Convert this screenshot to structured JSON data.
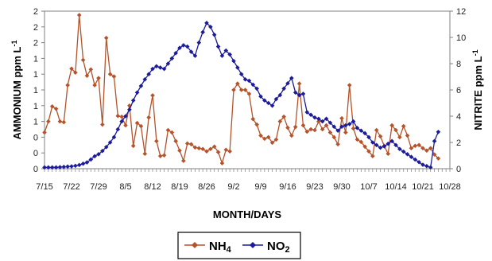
{
  "chart_data": {
    "type": "line",
    "xlabel": "MONTH/DAYS",
    "ylabel_left": "AMMONIUM ppm L",
    "ylabel_left_sup": "-1",
    "ylabel_right": "NITRITE ppm L",
    "ylabel_right_sup": "-1",
    "x_ticks": [
      "7/15",
      "7/22",
      "7/29",
      "8/5",
      "8/12",
      "8/19",
      "8/26",
      "9/2",
      "9/9",
      "9/16",
      "9/23",
      "9/30",
      "10/7",
      "10/14",
      "10/21",
      "10/28"
    ],
    "x_unit": "days since 7/15",
    "xlim": [
      0,
      105
    ],
    "y_left_ticks": [
      "0",
      "0",
      "0",
      "1",
      "1",
      "1",
      "1",
      "1",
      "2",
      "2",
      "2"
    ],
    "y_left_lim": [
      0,
      2
    ],
    "y_right_ticks": [
      "0",
      "2",
      "4",
      "6",
      "8",
      "10",
      "12"
    ],
    "y_right_lim": [
      0,
      12
    ],
    "grid": false,
    "legend_position": "bottom-center",
    "series": [
      {
        "name": "NH",
        "name_sub": "4",
        "axis": "left",
        "color": "#b5532a",
        "marker": "diamond",
        "x": [
          0,
          1,
          2,
          3,
          4,
          5,
          6,
          7,
          8,
          9,
          10,
          11,
          12,
          13,
          14,
          15,
          16,
          17,
          18,
          19,
          20,
          21,
          22,
          23,
          24,
          25,
          26,
          27,
          28,
          29,
          30,
          31,
          32,
          33,
          34,
          35,
          36,
          37,
          38,
          39,
          40,
          41,
          42,
          43,
          44,
          45,
          46,
          47,
          48,
          49,
          50,
          51,
          52,
          53,
          54,
          55,
          56,
          57,
          58,
          59,
          60,
          61,
          62,
          63,
          64,
          65,
          66,
          67,
          68,
          69,
          70,
          71,
          72,
          73,
          74,
          75,
          76,
          77,
          78,
          79,
          80,
          81,
          82,
          83,
          84,
          85,
          86,
          87,
          88,
          89,
          90,
          91,
          92,
          93,
          94,
          95,
          96,
          97,
          98,
          99,
          100,
          101,
          102
        ],
        "y": [
          0.46,
          0.6,
          0.79,
          0.76,
          0.6,
          0.59,
          1.06,
          1.27,
          1.22,
          1.95,
          1.38,
          1.18,
          1.26,
          1.06,
          1.15,
          0.56,
          1.66,
          1.2,
          1.17,
          0.67,
          0.66,
          0.55,
          0.8,
          0.29,
          0.58,
          0.54,
          0.19,
          0.65,
          0.93,
          0.35,
          0.16,
          0.17,
          0.49,
          0.46,
          0.35,
          0.23,
          0.1,
          0.32,
          0.31,
          0.27,
          0.26,
          0.25,
          0.22,
          0.25,
          0.28,
          0.21,
          0.07,
          0.24,
          0.22,
          1.0,
          1.08,
          1.0,
          1.0,
          0.95,
          0.63,
          0.56,
          0.42,
          0.38,
          0.4,
          0.33,
          0.37,
          0.6,
          0.66,
          0.52,
          0.42,
          0.53,
          1.08,
          0.55,
          0.47,
          0.5,
          0.49,
          0.6,
          0.5,
          0.55,
          0.46,
          0.4,
          0.31,
          0.64,
          0.46,
          1.06,
          0.51,
          0.37,
          0.34,
          0.28,
          0.22,
          0.16,
          0.49,
          0.41,
          0.29,
          0.19,
          0.55,
          0.49,
          0.4,
          0.54,
          0.42,
          0.26,
          0.29,
          0.3,
          0.26,
          0.23,
          0.26,
          0.18,
          0.13
        ]
      },
      {
        "name": "NO",
        "name_sub": "2",
        "axis": "right",
        "color": "#1c1c9a",
        "marker": "diamond",
        "x": [
          0,
          1,
          2,
          3,
          4,
          5,
          6,
          7,
          8,
          9,
          10,
          11,
          12,
          13,
          14,
          15,
          16,
          17,
          18,
          19,
          20,
          21,
          22,
          23,
          24,
          25,
          26,
          27,
          28,
          29,
          30,
          31,
          32,
          33,
          34,
          35,
          36,
          37,
          38,
          39,
          40,
          41,
          42,
          43,
          44,
          45,
          46,
          47,
          48,
          49,
          50,
          51,
          52,
          53,
          54,
          55,
          56,
          57,
          58,
          59,
          60,
          61,
          62,
          63,
          64,
          65,
          66,
          67,
          68,
          69,
          70,
          71,
          72,
          73,
          74,
          75,
          76,
          77,
          78,
          79,
          80,
          81,
          82,
          83,
          84,
          85,
          86,
          87,
          88,
          89,
          90,
          91,
          92,
          93,
          94,
          95,
          96,
          97,
          98,
          99,
          100,
          101,
          102
        ],
        "y": [
          0.1,
          0.1,
          0.1,
          0.1,
          0.12,
          0.14,
          0.16,
          0.18,
          0.22,
          0.28,
          0.38,
          0.48,
          0.7,
          0.95,
          1.1,
          1.35,
          1.65,
          2.0,
          2.4,
          3.0,
          3.6,
          4.0,
          4.5,
          5.2,
          5.8,
          6.3,
          6.8,
          7.2,
          7.6,
          7.8,
          7.7,
          7.6,
          8.0,
          8.4,
          8.8,
          9.2,
          9.4,
          9.3,
          8.9,
          8.6,
          9.6,
          10.4,
          11.1,
          10.8,
          10.2,
          9.3,
          8.6,
          9.0,
          8.7,
          8.2,
          7.7,
          7.2,
          6.8,
          6.7,
          6.4,
          6.1,
          5.5,
          5.2,
          5.0,
          4.8,
          5.3,
          5.6,
          6.1,
          6.5,
          6.9,
          5.8,
          5.6,
          5.7,
          4.3,
          4.1,
          3.9,
          3.8,
          3.6,
          3.8,
          3.5,
          3.2,
          2.9,
          3.2,
          3.3,
          3.4,
          3.6,
          3.1,
          2.9,
          2.7,
          2.4,
          2.0,
          1.8,
          1.6,
          1.7,
          1.9,
          2.1,
          1.8,
          1.5,
          1.3,
          1.1,
          0.9,
          0.7,
          0.5,
          0.3,
          0.2,
          0.1,
          2.1,
          2.8
        ]
      }
    ]
  }
}
